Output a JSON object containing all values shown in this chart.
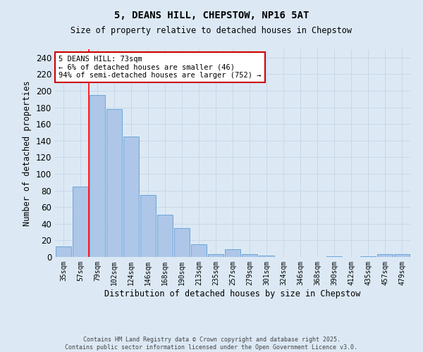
{
  "title_line1": "5, DEANS HILL, CHEPSTOW, NP16 5AT",
  "title_line2": "Size of property relative to detached houses in Chepstow",
  "xlabel": "Distribution of detached houses by size in Chepstow",
  "ylabel": "Number of detached properties",
  "categories": [
    "35sqm",
    "57sqm",
    "79sqm",
    "102sqm",
    "124sqm",
    "146sqm",
    "168sqm",
    "190sqm",
    "213sqm",
    "235sqm",
    "257sqm",
    "279sqm",
    "301sqm",
    "324sqm",
    "346sqm",
    "368sqm",
    "390sqm",
    "412sqm",
    "435sqm",
    "457sqm",
    "479sqm"
  ],
  "values": [
    13,
    85,
    195,
    178,
    145,
    75,
    51,
    35,
    15,
    3,
    9,
    3,
    2,
    0,
    0,
    0,
    1,
    0,
    1,
    3,
    3
  ],
  "bar_color": "#aec6e8",
  "bar_edge_color": "#5a9fd4",
  "red_line_index": 2,
  "annotation_text": "5 DEANS HILL: 73sqm\n← 6% of detached houses are smaller (46)\n94% of semi-detached houses are larger (752) →",
  "annotation_box_color": "#ffffff",
  "annotation_box_edge": "#cc0000",
  "grid_color": "#c8d8e8",
  "background_color": "#dce9f5",
  "footer_line1": "Contains HM Land Registry data © Crown copyright and database right 2025.",
  "footer_line2": "Contains public sector information licensed under the Open Government Licence v3.0.",
  "ylim": [
    0,
    250
  ],
  "yticks": [
    0,
    20,
    40,
    60,
    80,
    100,
    120,
    140,
    160,
    180,
    200,
    220,
    240
  ]
}
